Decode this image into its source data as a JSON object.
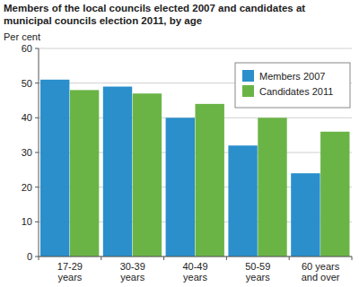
{
  "chart_data": {
    "type": "bar",
    "title": "Members of the local councils elected 2007 and candidates at municipal councils election 2011, by age",
    "y_label": "Per cent",
    "categories": [
      "17-29 years",
      "30-39 years",
      "40-49 years",
      "50-59 years",
      "60 years and over"
    ],
    "series": [
      {
        "name": "Members 2007",
        "color": "#2a8fcb",
        "values": [
          51,
          49,
          40,
          32,
          24
        ]
      },
      {
        "name": "Candidates 2011",
        "color": "#6ab446",
        "values": [
          48,
          47,
          44,
          40,
          36
        ]
      }
    ],
    "ylim": [
      0,
      60
    ],
    "yticks": [
      0,
      10,
      20,
      30,
      40,
      50,
      60
    ],
    "grid": true,
    "legend": "upper right"
  }
}
